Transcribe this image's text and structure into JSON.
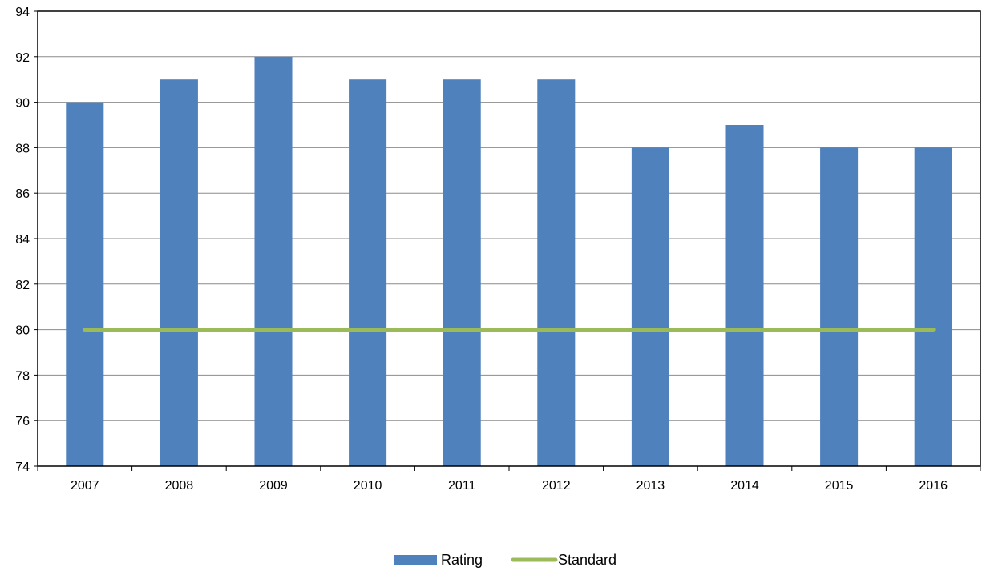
{
  "chart_data": {
    "type": "bar",
    "categories": [
      "2007",
      "2008",
      "2009",
      "2010",
      "2011",
      "2012",
      "2013",
      "2014",
      "2015",
      "2016"
    ],
    "series": [
      {
        "name": "Rating",
        "type": "bar",
        "color": "#4F81BD",
        "values": [
          90,
          91,
          92,
          91,
          91,
          91,
          88,
          89,
          88,
          88
        ]
      },
      {
        "name": "Standard",
        "type": "line",
        "color": "#9BBB59",
        "values": [
          80,
          80,
          80,
          80,
          80,
          80,
          80,
          80,
          80,
          80
        ]
      }
    ],
    "ylim": [
      74,
      94
    ],
    "yticks": [
      "74",
      "76",
      "78",
      "80",
      "82",
      "84",
      "86",
      "88",
      "90",
      "92",
      "94"
    ],
    "grid": true,
    "legend_position": "bottom",
    "title": "",
    "xlabel": "",
    "ylabel": ""
  }
}
